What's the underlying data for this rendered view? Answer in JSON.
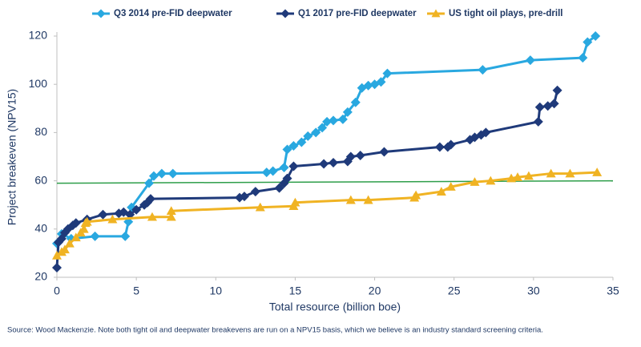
{
  "chart_data": {
    "type": "line",
    "x_label": "Total resource (billion boe)",
    "y_label": "Project breakeven (NPV15)",
    "source": "Source: Wood Mackenzie. Note both tight oil and deepwater breakevens are run on a NPV15 basis, which we believe is an industry standard screening criteria.",
    "xlim": [
      0,
      35
    ],
    "xticks": [
      0,
      5,
      10,
      15,
      20,
      25,
      30,
      35
    ],
    "ylim": [
      20,
      120
    ],
    "yticks": [
      20,
      40,
      60,
      80,
      100,
      120
    ],
    "legend": "top",
    "series": [
      {
        "name": "Q3 2014 pre-FID deepwater",
        "color": "#29a8e0",
        "marker": "diamond",
        "x": [
          0,
          0.3,
          0.9,
          2.4,
          4.3,
          4.5,
          4.7,
          5.8,
          6.1,
          6.6,
          7.3,
          13.2,
          13.6,
          14.3,
          14.5,
          14.9,
          15.4,
          15.8,
          16.3,
          16.7,
          17,
          17.4,
          18,
          18.3,
          18.8,
          19.2,
          19.6,
          20,
          20.4,
          20.8,
          26.8,
          29.8,
          33.1,
          33.4,
          33.9
        ],
        "values": [
          34,
          38,
          36,
          37,
          37,
          43,
          49,
          59,
          62,
          63,
          63,
          63.5,
          64,
          65.5,
          73,
          74.5,
          76,
          78.5,
          80,
          82,
          84.5,
          85,
          85.5,
          88.5,
          92.5,
          98.5,
          99.5,
          100,
          101,
          104.5,
          106,
          110,
          111,
          117.5,
          120
        ]
      },
      {
        "name": "Q1 2017 pre-FID deepwater",
        "color": "#1f3a7a",
        "marker": "diamond",
        "x": [
          0,
          0.1,
          0.3,
          0.5,
          0.7,
          1,
          1.2,
          1.9,
          2.9,
          3.9,
          4.2,
          4.6,
          5,
          5.5,
          5.7,
          5.9,
          11.5,
          11.8,
          12.5,
          14,
          14.3,
          14.5,
          14.9,
          16.8,
          17.4,
          18.3,
          18.5,
          19.1,
          20.6,
          24.1,
          24.6,
          24.8,
          26,
          26.3,
          26.7,
          27,
          30.3,
          30.4,
          30.9,
          31.3,
          31.5
        ],
        "values": [
          24,
          34.5,
          36,
          38.5,
          40,
          41.5,
          42.5,
          44,
          46,
          46.5,
          47,
          46,
          48,
          50,
          51,
          52.5,
          53,
          53.5,
          55.5,
          57,
          59,
          61,
          66,
          67,
          67.5,
          68,
          70,
          70.5,
          72,
          74,
          74,
          75,
          77,
          78,
          79,
          80,
          84.5,
          90.5,
          91,
          92,
          97.5
        ]
      },
      {
        "name": "US tight oil plays, pre-drill",
        "color": "#f0b323",
        "marker": "triangle",
        "x": [
          0,
          0.3,
          0.5,
          0.8,
          1.2,
          1.5,
          1.7,
          1.8,
          1.9,
          3.5,
          6,
          7.2,
          7.2,
          12.8,
          14.9,
          15,
          18.5,
          19.6,
          22.5,
          22.6,
          24.2,
          24.8,
          26.3,
          27.3,
          28.6,
          29,
          29.7,
          31.1,
          32.3,
          34
        ],
        "values": [
          29,
          30.5,
          31.5,
          34,
          36.5,
          38.5,
          40,
          42.5,
          43,
          44,
          45,
          45,
          47.5,
          49,
          49.5,
          51,
          52,
          52,
          53,
          54,
          55.5,
          57.5,
          59.5,
          60,
          61,
          61.5,
          62,
          63,
          63,
          63.5
        ]
      }
    ],
    "reference_line": {
      "x": [
        0,
        35
      ],
      "values": [
        59,
        60
      ],
      "color": "#2e9e4a"
    }
  }
}
